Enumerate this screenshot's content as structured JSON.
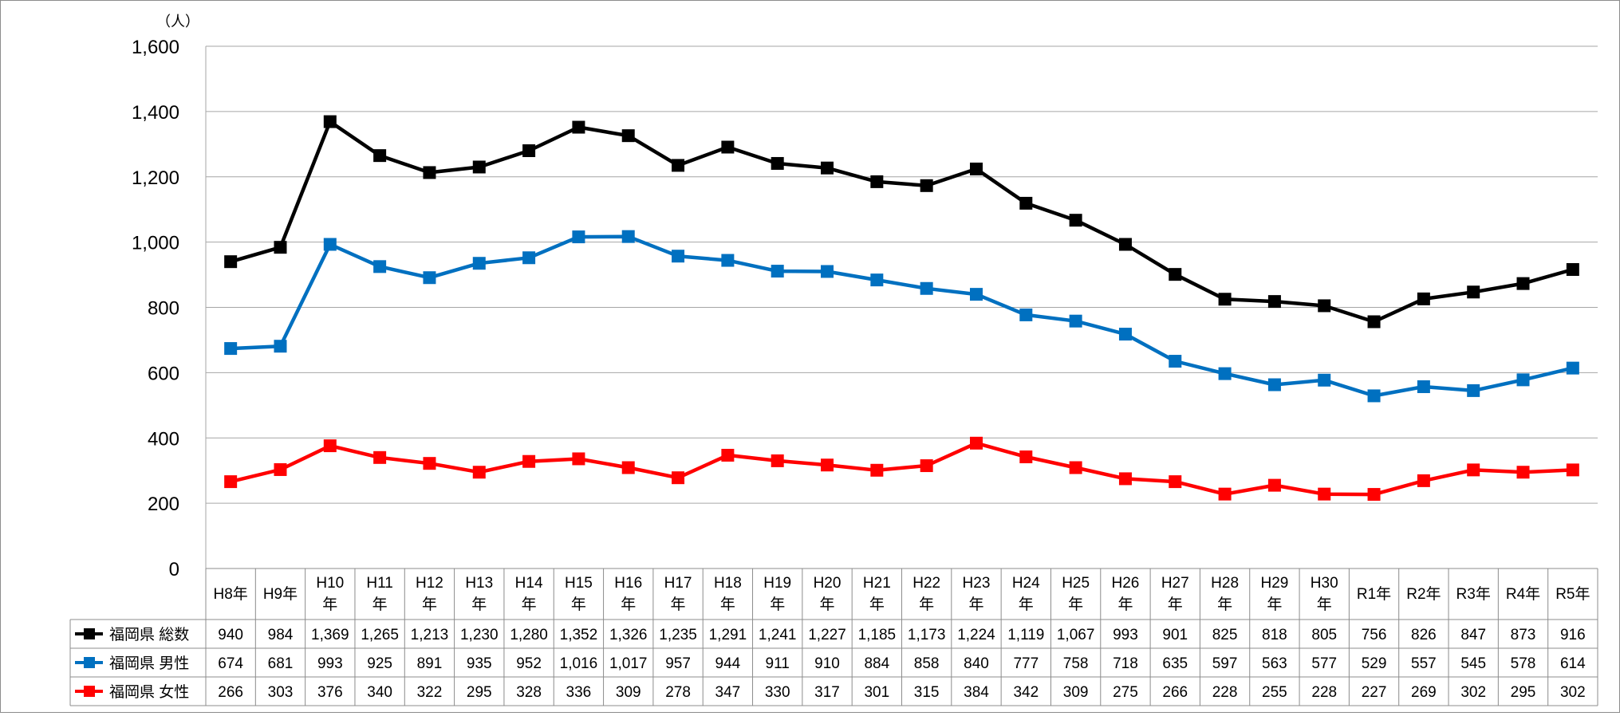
{
  "chart_data": {
    "type": "line",
    "unit_label": "（人）",
    "ylim": [
      0,
      1600
    ],
    "y_ticks": [
      "0",
      "200",
      "400",
      "600",
      "800",
      "1,000",
      "1,200",
      "1,400",
      "1,600"
    ],
    "grid": true,
    "legend_placement": "data-table-rows",
    "categories": [
      "H8年",
      "H9年",
      "H10年",
      "H11年",
      "H12年",
      "H13年",
      "H14年",
      "H15年",
      "H16年",
      "H17年",
      "H18年",
      "H19年",
      "H20年",
      "H21年",
      "H22年",
      "H23年",
      "H24年",
      "H25年",
      "H26年",
      "H27年",
      "H28年",
      "H29年",
      "H30年",
      "R1年",
      "R2年",
      "R3年",
      "R4年",
      "R5年"
    ],
    "category_label_lines": [
      [
        "H8年"
      ],
      [
        "H9年"
      ],
      [
        "H10",
        "年"
      ],
      [
        "H11",
        "年"
      ],
      [
        "H12",
        "年"
      ],
      [
        "H13",
        "年"
      ],
      [
        "H14",
        "年"
      ],
      [
        "H15",
        "年"
      ],
      [
        "H16",
        "年"
      ],
      [
        "H17",
        "年"
      ],
      [
        "H18",
        "年"
      ],
      [
        "H19",
        "年"
      ],
      [
        "H20",
        "年"
      ],
      [
        "H21",
        "年"
      ],
      [
        "H22",
        "年"
      ],
      [
        "H23",
        "年"
      ],
      [
        "H24",
        "年"
      ],
      [
        "H25",
        "年"
      ],
      [
        "H26",
        "年"
      ],
      [
        "H27",
        "年"
      ],
      [
        "H28",
        "年"
      ],
      [
        "H29",
        "年"
      ],
      [
        "H30",
        "年"
      ],
      [
        "R1年"
      ],
      [
        "R2年"
      ],
      [
        "R3年"
      ],
      [
        "R4年"
      ],
      [
        "R5年"
      ]
    ],
    "series": [
      {
        "name": "福岡県 総数",
        "color": "#000000",
        "values": [
          940,
          984,
          1369,
          1265,
          1213,
          1230,
          1280,
          1352,
          1326,
          1235,
          1291,
          1241,
          1227,
          1185,
          1173,
          1224,
          1119,
          1067,
          993,
          901,
          825,
          818,
          805,
          756,
          826,
          847,
          873,
          916
        ],
        "labels": [
          "940",
          "984",
          "1,369",
          "1,265",
          "1,213",
          "1,230",
          "1,280",
          "1,352",
          "1,326",
          "1,235",
          "1,291",
          "1,241",
          "1,227",
          "1,185",
          "1,173",
          "1,224",
          "1,119",
          "1,067",
          "993",
          "901",
          "825",
          "818",
          "805",
          "756",
          "826",
          "847",
          "873",
          "916"
        ]
      },
      {
        "name": "福岡県 男性",
        "color": "#0070C0",
        "values": [
          674,
          681,
          993,
          925,
          891,
          935,
          952,
          1016,
          1017,
          957,
          944,
          911,
          910,
          884,
          858,
          840,
          777,
          758,
          718,
          635,
          597,
          563,
          577,
          529,
          557,
          545,
          578,
          614
        ],
        "labels": [
          "674",
          "681",
          "993",
          "925",
          "891",
          "935",
          "952",
          "1,016",
          "1,017",
          "957",
          "944",
          "911",
          "910",
          "884",
          "858",
          "840",
          "777",
          "758",
          "718",
          "635",
          "597",
          "563",
          "577",
          "529",
          "557",
          "545",
          "578",
          "614"
        ]
      },
      {
        "name": "福岡県 女性",
        "color": "#FF0000",
        "values": [
          266,
          303,
          376,
          340,
          322,
          295,
          328,
          336,
          309,
          278,
          347,
          330,
          317,
          301,
          315,
          384,
          342,
          309,
          275,
          266,
          228,
          255,
          228,
          227,
          269,
          302,
          295,
          302
        ],
        "labels": [
          "266",
          "303",
          "376",
          "340",
          "322",
          "295",
          "328",
          "336",
          "309",
          "278",
          "347",
          "330",
          "317",
          "301",
          "315",
          "384",
          "342",
          "309",
          "275",
          "266",
          "228",
          "255",
          "228",
          "227",
          "269",
          "302",
          "295",
          "302"
        ]
      }
    ]
  }
}
